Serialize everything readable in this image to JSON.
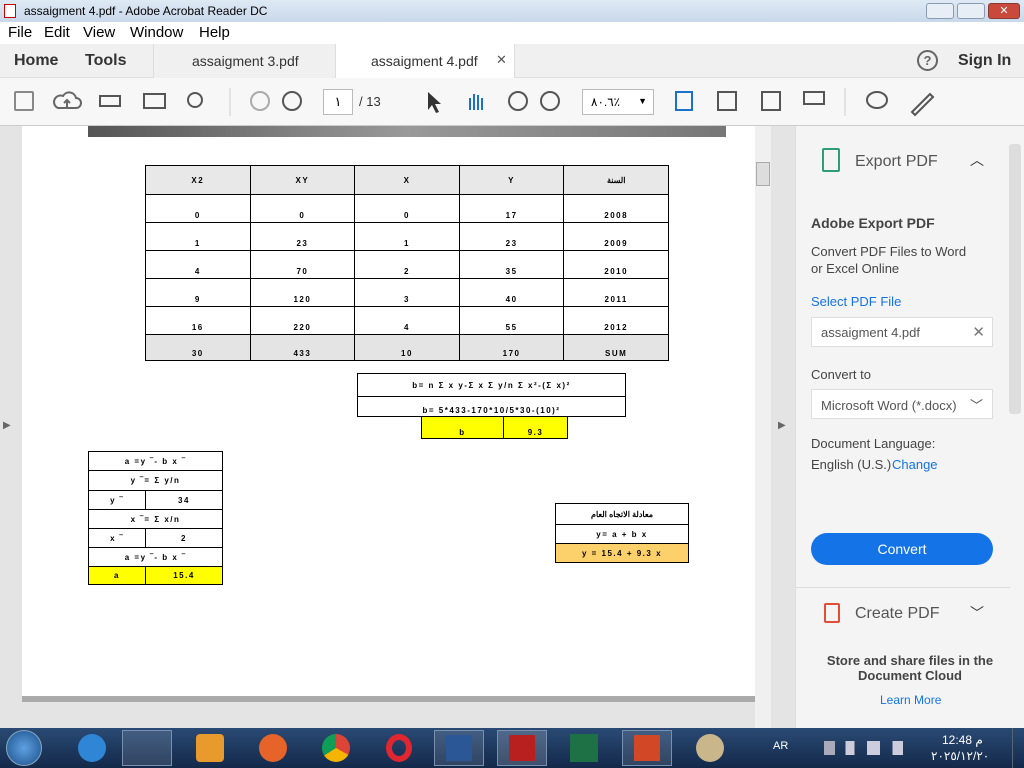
{
  "window": {
    "title": "assaigment 4.pdf - Adobe Acrobat Reader DC"
  },
  "menu": [
    "File",
    "Edit",
    "View",
    "Window",
    "Help"
  ],
  "tabs": {
    "home": "Home",
    "tools": "Tools",
    "documents": [
      "assaigment 3.pdf",
      "assaigment 4.pdf"
    ],
    "sign_in": "Sign In"
  },
  "toolbar": {
    "page": "١",
    "page_total": "/ 13",
    "zoom": "٨٠.٦٪"
  },
  "document": {
    "table": {
      "header": [
        "X2",
        "XY",
        "X",
        "Y",
        "السنة"
      ],
      "rows": [
        [
          "0",
          "0",
          "0",
          "17",
          "2008"
        ],
        [
          "1",
          "23",
          "1",
          "23",
          "2009"
        ],
        [
          "4",
          "70",
          "2",
          "35",
          "2010"
        ],
        [
          "9",
          "120",
          "3",
          "40",
          "2011"
        ],
        [
          "16",
          "220",
          "4",
          "55",
          "2012"
        ]
      ],
      "sum_row": [
        "30",
        "433",
        "10",
        "170",
        "SUM"
      ]
    },
    "formula": {
      "lines": [
        "b= n  Σ x y-Σ  x Σ y/n Σ x²-(Σ  x)²",
        "b= 5*433-170*10/5*30-(10)²"
      ],
      "result": [
        "b",
        "9.3"
      ]
    },
    "a_calc": {
      "rows": [
        [
          "a =y ‾- b x ‾"
        ],
        [
          "y ‾= Σ  y/n"
        ],
        [
          "y ‾",
          "34"
        ],
        [
          "x ‾= Σ  x/n"
        ],
        [
          "x ‾",
          "2"
        ],
        [
          "a =y ‾- b x ‾"
        ],
        [
          "a",
          "15.4"
        ]
      ]
    },
    "trend": {
      "rows": [
        "معادلة الاتجاه العام",
        "y= a + b x",
        "y = 15.4 + 9.3 x"
      ]
    }
  },
  "panel": {
    "export_title": "Export PDF",
    "heading": "Adobe Export PDF",
    "description": "Convert PDF Files to Word or Excel Online",
    "select_file": "Select PDF File",
    "file_name": "assaigment 4.pdf",
    "convert_to": "Convert to",
    "format": "Microsoft Word (*.docx)",
    "language_label": "Document Language:",
    "language": "English (U.S.)",
    "change": "Change",
    "convert": "Convert",
    "create_title": "Create PDF",
    "cloud_text": "Store and share files in the Document Cloud",
    "learn_more": "Learn More"
  },
  "taskbar": {
    "language": "AR",
    "time": "12:48 م",
    "date": "٢٠٢٥/١٢/٢٠"
  }
}
